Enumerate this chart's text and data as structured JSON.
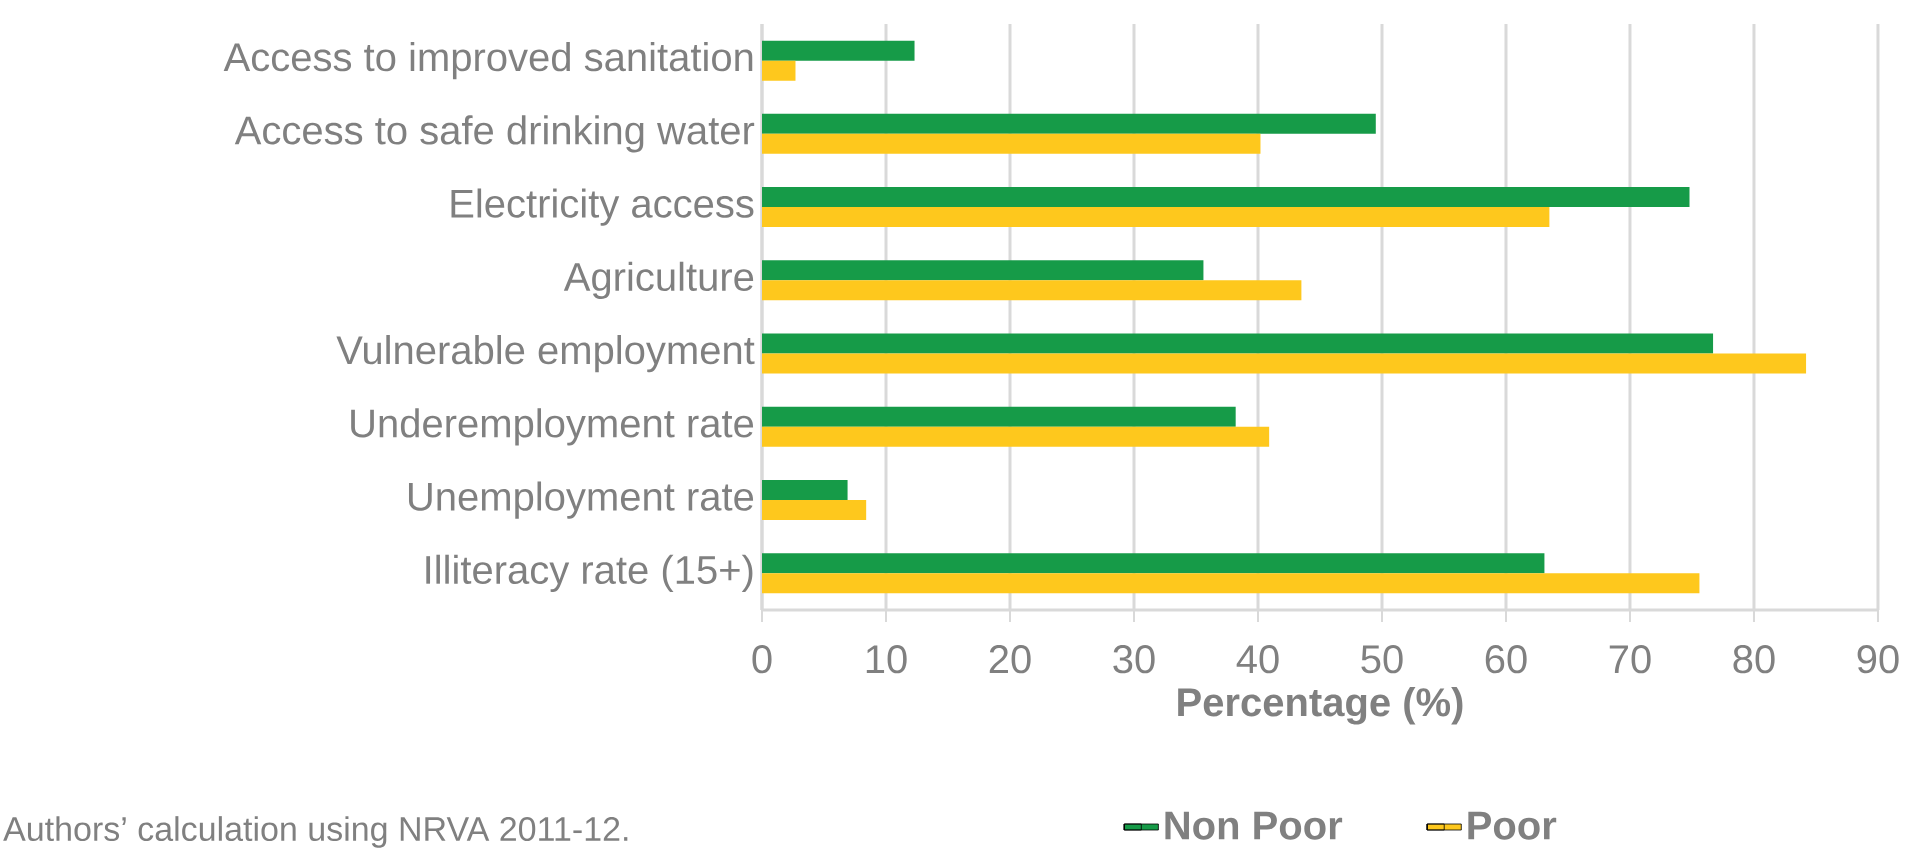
{
  "chart_data": {
    "type": "bar",
    "orientation": "horizontal",
    "xlabel": "Percentage (%)",
    "categories": [
      "Access to improved sanitation",
      "Access to safe drinking water",
      "Electricity access",
      "Agriculture",
      "Vulnerable employment",
      "Underemployment rate",
      "Unemployment rate",
      "Illiteracy rate (15+)"
    ],
    "series": [
      {
        "name": "Non Poor",
        "color": "#169b48",
        "values": [
          12.3,
          49.5,
          74.8,
          35.6,
          76.7,
          38.2,
          6.9,
          63.1
        ]
      },
      {
        "name": "Poor",
        "color": "#fec81d",
        "values": [
          2.7,
          40.2,
          63.5,
          43.5,
          84.2,
          40.9,
          8.4,
          75.6
        ]
      }
    ],
    "xlim": [
      0,
      90
    ],
    "xticks": [
      0,
      10,
      20,
      30,
      40,
      50,
      60,
      70,
      80,
      90
    ],
    "grid": "x",
    "legend": "bottom",
    "annotations": [
      "Authors’ calculation using NRVA 2011-12."
    ]
  }
}
